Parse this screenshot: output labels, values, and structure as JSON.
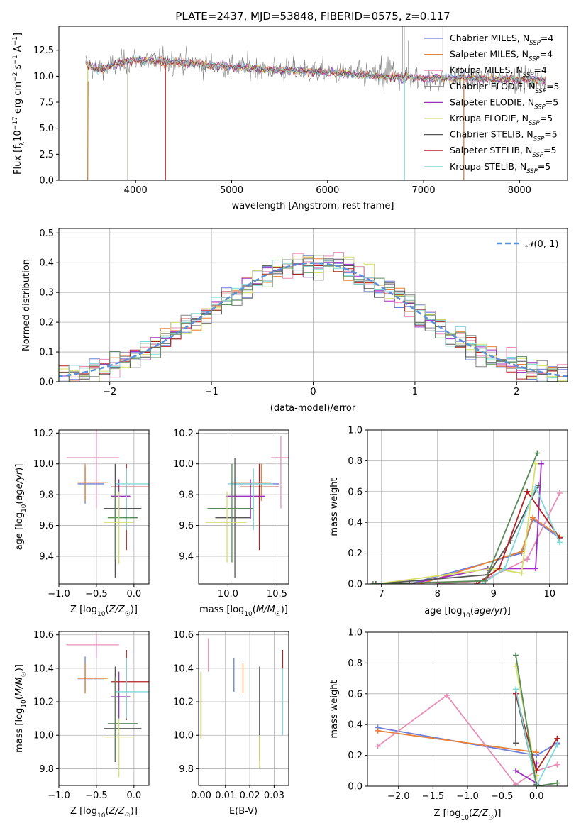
{
  "colors": [
    "#6b7fd7",
    "#e8823a",
    "#e88fb8",
    "#808080",
    "#9b30c0",
    "#d4e06a",
    "#555555",
    "#b22222",
    "#7fd8d8",
    "#5a8a5a"
  ],
  "chart_data": [
    {
      "id": "spectrum",
      "type": "line",
      "title": "PLATE=2437, MJD=53848, FIBERID=0575, z=0.117",
      "xlabel": "wavelength [Angstrom, rest frame]",
      "ylabel": "Flux [f_λ 10^-17 erg cm^-2 s^-1 A^-1]",
      "xlim": [
        3200,
        8500
      ],
      "ylim": [
        0,
        14.8
      ],
      "xticks": [
        "4000",
        "5000",
        "6000",
        "7000",
        "8000"
      ],
      "yticks": [
        "0.0",
        "2.5",
        "5.0",
        "7.5",
        "10.0",
        "12.5"
      ],
      "legend_placement": "top-right",
      "series": [
        {
          "name": "Chabrier MILES, N_SSP=4",
          "color": "#6b7fd7"
        },
        {
          "name": "Salpeter MILES, N_SSP=4",
          "color": "#e8823a"
        },
        {
          "name": "Kroupa MILES, N_SSP=4",
          "color": "#e88fb8"
        },
        {
          "name": "Chabrier ELODIE, N_SSP=5",
          "color": "#808080"
        },
        {
          "name": "Salpeter ELODIE, N_SSP=5",
          "color": "#9b30c0"
        },
        {
          "name": "Kroupa ELODIE, N_SSP=5",
          "color": "#d4e06a"
        },
        {
          "name": "Chabrier STELIB, N_SSP=5",
          "color": "#555555"
        },
        {
          "name": "Salpeter STELIB, N_SSP=5",
          "color": "#b22222"
        },
        {
          "name": "Kroupa STELIB, N_SSP=5",
          "color": "#7fd8d8"
        }
      ],
      "continuum": {
        "x": [
          3480,
          3600,
          4000,
          4500,
          5000,
          5500,
          6000,
          6500,
          7000,
          7500,
          8000,
          8300
        ],
        "y": [
          11.2,
          10.6,
          11.6,
          11.3,
          10.9,
          10.6,
          10.4,
          10.0,
          9.8,
          9.8,
          9.7,
          9.6
        ]
      },
      "drop_edges": [
        3500,
        3920,
        4310,
        6800,
        7420
      ]
    },
    {
      "id": "residuals",
      "type": "line",
      "xlabel": "(data-model)/error",
      "ylabel": "Normed distribution",
      "xlim": [
        -2.5,
        2.5
      ],
      "ylim": [
        0,
        0.515
      ],
      "xticks": [
        "−2",
        "−1",
        "0",
        "1",
        "2"
      ],
      "yticks": [
        "0.0",
        "0.1",
        "0.2",
        "0.3",
        "0.4",
        "0.5"
      ],
      "reference": {
        "name": "N(0,1)",
        "mean": 0,
        "sigma": 1
      },
      "bin_width": 0.1,
      "legend_placement": "top-right"
    },
    {
      "id": "age_vs_Z",
      "type": "scatter",
      "xlabel": "Z [log10(Z/Z☉)]",
      "ylabel": "age [log10(age/yr)]",
      "xlim": [
        -1.0,
        0.2
      ],
      "ylim": [
        9.22,
        10.22
      ],
      "xticks": [
        "−1.0",
        "−0.5",
        "0.0"
      ],
      "yticks": [
        "9.4",
        "9.6",
        "9.8",
        "10.0",
        "10.2"
      ],
      "points": [
        {
          "x": -0.5,
          "y": 10.04,
          "xerr": [
            0.4,
            0.3
          ],
          "yerr": [
            0.33,
            0.18
          ],
          "color": "#e88fb8"
        },
        {
          "x": -0.65,
          "y": 9.87,
          "xerr": [
            0.1,
            0.25
          ],
          "yerr": [
            0.13,
            0.11
          ],
          "color": "#6b7fd7"
        },
        {
          "x": -0.65,
          "y": 9.88,
          "xerr": [
            0.1,
            0.3
          ],
          "yerr": [
            0.12,
            0.12
          ],
          "color": "#e8823a"
        },
        {
          "x": -0.2,
          "y": 9.79,
          "xerr": [
            0.1,
            0.15
          ],
          "yerr": [
            0.15,
            0.11
          ],
          "color": "#9b30c0"
        },
        {
          "x": -0.1,
          "y": 9.85,
          "xerr": [
            0.2,
            0.3
          ],
          "yerr": [
            0.41,
            0.15
          ],
          "color": "#b22222"
        },
        {
          "x": -0.1,
          "y": 9.87,
          "xerr": [
            0.15,
            0.3
          ],
          "yerr": [
            0.3,
            0.1
          ],
          "color": "#7fd8d8"
        },
        {
          "x": -0.25,
          "y": 9.71,
          "xerr": [
            0.15,
            0.35
          ],
          "yerr": [
            0.45,
            0.29
          ],
          "color": "#555555"
        },
        {
          "x": -0.25,
          "y": 9.65,
          "xerr": [
            0.1,
            0.3
          ],
          "yerr": [
            0.27,
            0.2
          ],
          "color": "#5a8a5a"
        },
        {
          "x": -0.2,
          "y": 9.62,
          "xerr": [
            0.2,
            0.2
          ],
          "yerr": [
            0.27,
            0.2
          ],
          "color": "#d4e06a"
        }
      ]
    },
    {
      "id": "age_vs_mass",
      "type": "scatter",
      "xlabel": "mass [log10(M/M☉)]",
      "ylabel": "",
      "xlim": [
        9.7,
        10.62
      ],
      "ylim": [
        9.22,
        10.22
      ],
      "xticks": [
        "10.0",
        "10.5"
      ],
      "yticks": [
        "9.4",
        "9.6",
        "9.8",
        "10.0",
        "10.2"
      ],
      "points": [
        {
          "x": 10.54,
          "y": 10.04,
          "xerr": [
            0.1,
            0.1
          ],
          "yerr": [
            0.33,
            0.14
          ],
          "color": "#e88fb8"
        },
        {
          "x": 10.32,
          "y": 9.87,
          "xerr": [
            0.3,
            0.2
          ],
          "yerr": [
            0.13,
            0.11
          ],
          "color": "#6b7fd7"
        },
        {
          "x": 10.34,
          "y": 9.88,
          "xerr": [
            0.3,
            0.1
          ],
          "yerr": [
            0.12,
            0.12
          ],
          "color": "#e8823a"
        },
        {
          "x": 10.23,
          "y": 9.79,
          "xerr": [
            0.25,
            0.15
          ],
          "yerr": [
            0.15,
            0.11
          ],
          "color": "#9b30c0"
        },
        {
          "x": 10.32,
          "y": 9.85,
          "xerr": [
            0.2,
            0.2
          ],
          "yerr": [
            0.41,
            0.15
          ],
          "color": "#b22222"
        },
        {
          "x": 10.26,
          "y": 9.87,
          "xerr": [
            0.26,
            0.2
          ],
          "yerr": [
            0.3,
            0.1
          ],
          "color": "#7fd8d8"
        },
        {
          "x": 10.07,
          "y": 9.65,
          "xerr": [
            0.2,
            0.16
          ],
          "yerr": [
            0.39,
            0.39
          ],
          "color": "#555555"
        },
        {
          "x": 10.04,
          "y": 9.71,
          "xerr": [
            0.25,
            0.21
          ],
          "yerr": [
            0.35,
            0.29
          ],
          "color": "#5a8a5a"
        },
        {
          "x": 9.99,
          "y": 9.62,
          "xerr": [
            0.22,
            0.2
          ],
          "yerr": [
            0.26,
            0.2
          ],
          "color": "#d4e06a"
        }
      ]
    },
    {
      "id": "weight_vs_age",
      "type": "line",
      "xlabel": "age [log10(age/yr)]",
      "ylabel": "mass weight",
      "xlim": [
        6.75,
        10.32
      ],
      "ylim": [
        0,
        1.0
      ],
      "xticks": [
        "7",
        "8",
        "9",
        "10"
      ],
      "yticks": [
        "0.0",
        "0.2",
        "0.4",
        "0.6",
        "0.8",
        "1.0"
      ],
      "series": [
        {
          "color": "#6b7fd7",
          "x": [
            7.5,
            9.5,
            9.7,
            10.18
          ],
          "y": [
            0.0,
            0.2,
            0.42,
            0.3
          ]
        },
        {
          "color": "#e8823a",
          "x": [
            7.7,
            9.5,
            9.7,
            10.18
          ],
          "y": [
            0.0,
            0.21,
            0.43,
            0.31
          ]
        },
        {
          "color": "#e88fb8",
          "x": [
            8.0,
            8.8,
            9.6,
            10.18
          ],
          "y": [
            0.0,
            0.02,
            0.16,
            0.59
          ]
        },
        {
          "color": "#9b30c0",
          "x": [
            7.5,
            8.9,
            9.75,
            9.85
          ],
          "y": [
            0.0,
            0.1,
            0.1,
            0.78
          ]
        },
        {
          "color": "#d4e06a",
          "x": [
            6.9,
            9.0,
            9.5,
            9.75
          ],
          "y": [
            0.0,
            0.1,
            0.07,
            0.78
          ]
        },
        {
          "color": "#555555",
          "x": [
            6.9,
            8.9,
            9.3,
            9.8
          ],
          "y": [
            0.0,
            0.06,
            0.28,
            0.64
          ]
        },
        {
          "color": "#b22222",
          "x": [
            8.7,
            9.1,
            9.6,
            10.18
          ],
          "y": [
            0.0,
            0.1,
            0.6,
            0.3
          ]
        },
        {
          "color": "#7fd8d8",
          "x": [
            8.8,
            9.2,
            9.75,
            10.18
          ],
          "y": [
            0.0,
            0.1,
            0.63,
            0.27
          ]
        },
        {
          "color": "#5a8a5a",
          "x": [
            6.85,
            8.85,
            9.78
          ],
          "y": [
            0.0,
            0.02,
            0.85
          ]
        }
      ]
    },
    {
      "id": "mass_vs_Z",
      "type": "scatter",
      "xlabel": "Z [log10(Z/Z☉)]",
      "ylabel": "mass [log10(M/M☉)]",
      "xlim": [
        -1.0,
        0.2
      ],
      "ylim": [
        9.7,
        10.62
      ],
      "xticks": [
        "−1.0",
        "−0.5",
        "0.0"
      ],
      "yticks": [
        "9.8",
        "10.0",
        "10.2",
        "10.4",
        "10.6"
      ],
      "points": [
        {
          "x": -0.5,
          "y": 10.54,
          "xerr": [
            0.4,
            0.3
          ],
          "yerr": [
            0.08,
            0.06
          ],
          "color": "#e88fb8"
        },
        {
          "x": -0.65,
          "y": 10.33,
          "xerr": [
            0.1,
            0.25
          ],
          "yerr": [
            0.07,
            0.14
          ],
          "color": "#6b7fd7"
        },
        {
          "x": -0.65,
          "y": 10.34,
          "xerr": [
            0.1,
            0.3
          ],
          "yerr": [
            0.09,
            0.09
          ],
          "color": "#e8823a"
        },
        {
          "x": -0.2,
          "y": 10.23,
          "xerr": [
            0.1,
            0.15
          ],
          "yerr": [
            0.13,
            0.15
          ],
          "color": "#9b30c0"
        },
        {
          "x": -0.1,
          "y": 10.32,
          "xerr": [
            0.2,
            0.3
          ],
          "yerr": [
            0.23,
            0.19
          ],
          "color": "#b22222"
        },
        {
          "x": -0.1,
          "y": 10.26,
          "xerr": [
            0.15,
            0.3
          ],
          "yerr": [
            0.16,
            0.2
          ],
          "color": "#7fd8d8"
        },
        {
          "x": -0.25,
          "y": 10.04,
          "xerr": [
            0.15,
            0.35
          ],
          "yerr": [
            0.2,
            0.37
          ],
          "color": "#555555"
        },
        {
          "x": -0.25,
          "y": 10.07,
          "xerr": [
            0.1,
            0.3
          ],
          "yerr": [
            0.22,
            0.28
          ],
          "color": "#5a8a5a"
        },
        {
          "x": -0.2,
          "y": 9.99,
          "xerr": [
            0.2,
            0.2
          ],
          "yerr": [
            0.24,
            0.11
          ],
          "color": "#d4e06a"
        }
      ]
    },
    {
      "id": "mass_vs_EBV",
      "type": "scatter",
      "xlabel": "E(B-V)",
      "ylabel": "",
      "xlim": [
        -0.001,
        0.036
      ],
      "ylim": [
        9.7,
        10.62
      ],
      "xticks": [
        "0.00",
        "0.01",
        "0.02",
        "0.03"
      ],
      "yticks": [
        "9.8",
        "10.0",
        "10.2",
        "10.4",
        "10.6"
      ],
      "points": [
        {
          "x": 0.0,
          "y": 10.18,
          "yerr": [
            0.2,
            0.2
          ],
          "color": "#9b30c0"
        },
        {
          "x": 0.0,
          "y": 10.18,
          "yerr": [
            0.2,
            0.2
          ],
          "color": "#d4e06a"
        },
        {
          "x": 0.003,
          "y": 10.48,
          "yerr": [
            0.1,
            0.1
          ],
          "color": "#e88fb8"
        },
        {
          "x": 0.0135,
          "y": 10.36,
          "yerr": [
            0.1,
            0.1
          ],
          "color": "#6b7fd7"
        },
        {
          "x": 0.0172,
          "y": 10.34,
          "yerr": [
            0.09,
            0.09
          ],
          "color": "#e8823a"
        },
        {
          "x": 0.024,
          "y": 10.13,
          "yerr": [
            0.28,
            0.28
          ],
          "color": "#555555"
        },
        {
          "x": 0.024,
          "y": 9.9,
          "yerr": [
            0.1,
            0.1
          ],
          "color": "#d4e06a"
        },
        {
          "x": 0.0335,
          "y": 10.45,
          "yerr": [
            0.06,
            0.06
          ],
          "color": "#b22222"
        },
        {
          "x": 0.0335,
          "y": 10.2,
          "yerr": [
            0.2,
            0.2
          ],
          "color": "#7fd8d8"
        }
      ]
    },
    {
      "id": "weight_vs_Z",
      "type": "line",
      "xlabel": "Z [log10(Z/Z☉)]",
      "ylabel": "mass weight",
      "xlim": [
        -2.45,
        0.45
      ],
      "ylim": [
        0,
        1.0
      ],
      "xticks": [
        "−2.0",
        "−1.5",
        "−1.0",
        "−0.5",
        "0.0"
      ],
      "yticks": [
        "0.0",
        "0.2",
        "0.4",
        "0.6",
        "0.8",
        "1.0"
      ],
      "series": [
        {
          "color": "#6b7fd7",
          "x": [
            -2.3,
            0.0,
            0.3
          ],
          "y": [
            0.38,
            0.2,
            0.28
          ]
        },
        {
          "color": "#e8823a",
          "x": [
            -2.3,
            0.0
          ],
          "y": [
            0.36,
            0.22
          ]
        },
        {
          "color": "#e88fb8",
          "x": [
            -2.3,
            -1.3,
            -0.3,
            0.0,
            0.3
          ],
          "y": [
            0.26,
            0.59,
            0.01,
            0.1,
            0.14
          ]
        },
        {
          "color": "#9b30c0",
          "x": [
            -0.3,
            0.0,
            0.0
          ],
          "y": [
            0.1,
            0.02,
            0.15
          ]
        },
        {
          "color": "#d4e06a",
          "x": [
            -0.3,
            0.0,
            0.0
          ],
          "y": [
            0.78,
            0.07,
            0.0
          ]
        },
        {
          "color": "#555555",
          "x": [
            -0.3,
            -0.3,
            0.0
          ],
          "y": [
            0.28,
            0.6,
            0.01
          ]
        },
        {
          "color": "#b22222",
          "x": [
            -0.3,
            0.0,
            0.3
          ],
          "y": [
            0.6,
            0.1,
            0.31
          ]
        },
        {
          "color": "#7fd8d8",
          "x": [
            -0.3,
            0.0,
            0.3
          ],
          "y": [
            0.63,
            0.0,
            0.27
          ]
        },
        {
          "color": "#5a8a5a",
          "x": [
            -0.3,
            0.0,
            0.3
          ],
          "y": [
            0.85,
            0.0,
            0.02
          ]
        }
      ]
    }
  ]
}
